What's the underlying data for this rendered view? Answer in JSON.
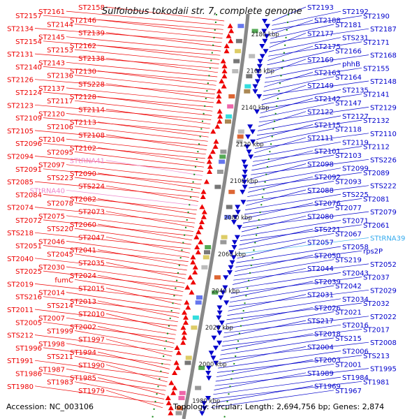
{
  "header": {
    "title": "Sulfolobus tokodaii str. 7, complete genome"
  },
  "footer": {
    "accession": "Accession: NC_003106",
    "topology": "Topology: circular; Length: 2,694,756 bp; Genes: 2,874"
  },
  "colors": {
    "forward": "#ee0000",
    "reverse": "#0000cc",
    "trna_forward": "#ee88cc",
    "trna_reverse": "#33aaee",
    "backbone": "#888888",
    "tick": "#118811"
  },
  "kbp_ticks": [
    "2180 kbp",
    "2160 kbp",
    "2140 kbp",
    "2120 kbp",
    "2100 kbp",
    "2080 kbp",
    "2060 kbp",
    "2040 kbp",
    "2020 kbp",
    "2000 kbp",
    "1980 kbp"
  ],
  "left_genes": [
    "ST2158",
    "ST2161",
    "ST2157",
    "ST2146",
    "ST2144",
    "ST2134",
    "ST2139",
    "ST2145",
    "ST2154",
    "ST2162",
    "ST2153",
    "ST2131",
    "ST2138",
    "ST2143",
    "ST2140",
    "ST2130",
    "ST2136",
    "ST2126",
    "STS228",
    "ST2137",
    "ST2124",
    "ST2128",
    "ST2117",
    "ST2123",
    "ST2114",
    "ST2120",
    "ST2109",
    "ST2113",
    "ST2106",
    "ST2105",
    "ST2108",
    "ST2104",
    "ST2096",
    "ST2102",
    "ST2095",
    "ST2094",
    "STtRNA41",
    "ST2097",
    "ST2091",
    "ST2090",
    "STS223",
    "ST2085",
    "STS224",
    "STtRNA40",
    "ST2084",
    "ST2082",
    "ST2078",
    "ST2074",
    "ST2073",
    "ST2075",
    "ST2072",
    "ST2060",
    "STS220",
    "STS218",
    "ST2047",
    "ST2046",
    "ST2051",
    "ST2041",
    "ST2045",
    "ST2040",
    "ST2035",
    "ST2030",
    "ST2025",
    "ST2024",
    "fumC",
    "ST2019",
    "ST2015",
    "ST2014",
    "STS216",
    "ST2013",
    "STS214",
    "ST2011",
    "ST2010",
    "ST2007",
    "ST2005",
    "ST2002",
    "ST1999",
    "STS212",
    "ST1997",
    "ST1998",
    "ST1996",
    "ST1994",
    "STS211",
    "ST1991",
    "ST1990",
    "ST1987",
    "ST1986",
    "ST1985",
    "ST1983",
    "ST1980",
    "ST1979"
  ],
  "right_genes": [
    "ST2193",
    "ST2192",
    "ST2190",
    "ST2188",
    "ST2181",
    "ST2187",
    "ST2177",
    "STS231",
    "ST2171",
    "ST2175",
    "ST2166",
    "ST2168",
    "ST2169",
    "phhB",
    "ST2155",
    "ST2163",
    "ST2164",
    "ST2148",
    "ST2149",
    "ST2135",
    "ST2141",
    "ST2142",
    "ST2147",
    "ST2129",
    "ST2122",
    "ST2127",
    "ST2132",
    "ST2115",
    "ST2118",
    "ST2110",
    "ST2111",
    "ST2119",
    "ST2112",
    "ST2101",
    "ST2103",
    "STS226",
    "ST2098",
    "ST2099",
    "ST2089",
    "ST2092",
    "ST2093",
    "STS222",
    "ST2088",
    "STS225",
    "ST2081",
    "ST2076",
    "ST2077",
    "ST2079",
    "ST2080",
    "ST2071",
    "ST2061",
    "STS221",
    "ST2067",
    "STtRNA39",
    "ST2057",
    "ST2058",
    "rps2P",
    "ST2050",
    "STS219",
    "ST2052",
    "ST2044",
    "ST2043",
    "ST2037",
    "ST2039",
    "ST2042",
    "ST2029",
    "ST2031",
    "ST2034",
    "ST2032",
    "ST2026",
    "ST2021",
    "ST2022",
    "STS217",
    "ST2016",
    "ST2017",
    "ST2018",
    "STS215",
    "ST2008",
    "ST2004",
    "ST2006",
    "STS213",
    "ST2003",
    "ST2001",
    "ST1995",
    "ST1989",
    "ST1984",
    "ST1981",
    "ST1969",
    "ST1967"
  ]
}
